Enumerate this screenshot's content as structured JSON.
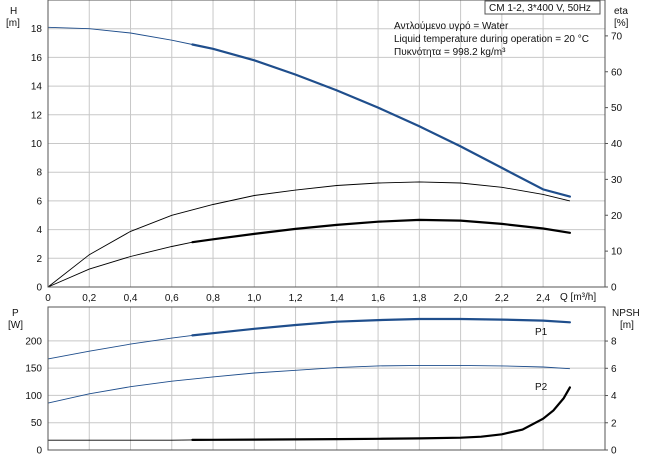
{
  "chart_data": [
    {
      "type": "line",
      "panel": "head-efficiency",
      "title": "CM 1-2, 3*400 V, 50Hz",
      "annotations": [
        "Αντλούμενο υγρό = Water",
        "Liquid temperature during operation = 20 °C",
        "Πυκνότητα = 998.2 kg/m³"
      ],
      "xlabel": "Q [m³/h]",
      "ylabel_left": {
        "name": "H",
        "unit": "[m]"
      },
      "ylabel_right": {
        "name": "eta",
        "unit": "[%]"
      },
      "xlim": [
        0,
        2.7
      ],
      "ylim_left": [
        0,
        20
      ],
      "ylim_right": [
        0,
        80
      ],
      "x_ticks": [
        "0",
        "0,2",
        "0,4",
        "0,6",
        "0,8",
        "1,0",
        "1,2",
        "1,4",
        "1,6",
        "1,8",
        "2,0",
        "2,2",
        "2,4"
      ],
      "y_ticks_left": [
        "0",
        "2",
        "4",
        "6",
        "8",
        "10",
        "12",
        "14",
        "16",
        "18"
      ],
      "y_ticks_right": [
        "0",
        "10",
        "20",
        "30",
        "40",
        "50",
        "60",
        "70"
      ],
      "grid": true,
      "series": [
        {
          "axis": "left",
          "color": "#1f4e8c",
          "highlight_from": 0.7,
          "x": [
            0,
            0.2,
            0.4,
            0.6,
            0.7,
            0.8,
            1.0,
            1.2,
            1.4,
            1.6,
            1.8,
            2.0,
            2.2,
            2.4,
            2.53
          ],
          "y": [
            18.1,
            18.0,
            17.7,
            17.2,
            16.9,
            16.6,
            15.8,
            14.8,
            13.7,
            12.5,
            11.2,
            9.8,
            8.3,
            6.8,
            6.3
          ]
        },
        {
          "axis": "right",
          "color": "#000000",
          "highlight_from": 2.6,
          "x": [
            0,
            0.2,
            0.4,
            0.6,
            0.8,
            1.0,
            1.2,
            1.4,
            1.6,
            1.8,
            2.0,
            2.2,
            2.4,
            2.53
          ],
          "y": [
            0,
            9,
            15.5,
            20,
            23,
            25.5,
            27,
            28.3,
            29,
            29.3,
            29,
            27.8,
            25.8,
            24
          ]
        },
        {
          "axis": "right",
          "color": "#000000",
          "highlight_from": 0.7,
          "x": [
            0,
            0.2,
            0.4,
            0.6,
            0.7,
            0.8,
            1.0,
            1.2,
            1.4,
            1.6,
            1.8,
            2.0,
            2.2,
            2.4,
            2.53
          ],
          "y": [
            0,
            5,
            8.5,
            11.3,
            12.5,
            13.3,
            14.8,
            16.2,
            17.3,
            18.2,
            18.7,
            18.5,
            17.6,
            16.3,
            15.1
          ]
        }
      ]
    },
    {
      "type": "line",
      "panel": "power-npsh",
      "xlabel": "",
      "ylabel_left": {
        "name": "P",
        "unit": "[W]"
      },
      "ylabel_right": {
        "name": "NPSH",
        "unit": "[m]"
      },
      "xlim": [
        0,
        2.7
      ],
      "ylim_left": [
        0,
        262
      ],
      "ylim_right": [
        0,
        10.5
      ],
      "y_ticks_left": [
        "0",
        "50",
        "100",
        "150",
        "200"
      ],
      "y_ticks_right": [
        "0",
        "2",
        "4",
        "6",
        "8"
      ],
      "grid": true,
      "series": [
        {
          "name": "P1",
          "axis": "left",
          "color": "#1f4e8c",
          "highlight_from": 0.7,
          "x": [
            0,
            0.2,
            0.4,
            0.6,
            0.7,
            0.8,
            1.0,
            1.2,
            1.4,
            1.6,
            1.8,
            2.0,
            2.2,
            2.4,
            2.53
          ],
          "y": [
            167,
            181,
            194,
            205,
            210,
            214,
            222,
            229,
            235,
            238,
            240,
            240,
            239,
            237,
            234
          ]
        },
        {
          "name": "P2",
          "axis": "left",
          "color": "#1f4e8c",
          "highlight_from": 2.6,
          "x": [
            0,
            0.2,
            0.4,
            0.6,
            0.8,
            1.0,
            1.2,
            1.4,
            1.6,
            1.8,
            2.0,
            2.2,
            2.4,
            2.53
          ],
          "y": [
            86,
            103,
            116,
            126,
            134,
            141,
            146,
            151,
            154,
            155,
            155,
            154,
            152,
            149
          ]
        },
        {
          "axis": "right",
          "color": "#000000",
          "highlight_from": 0.7,
          "x": [
            0,
            0.2,
            0.4,
            0.6,
            0.7,
            0.8,
            1.0,
            1.2,
            1.4,
            1.6,
            1.8,
            2.0,
            2.1,
            2.2,
            2.3,
            2.4,
            2.45,
            2.5,
            2.53
          ],
          "y": [
            0.72,
            0.72,
            0.72,
            0.72,
            0.74,
            0.75,
            0.76,
            0.78,
            0.8,
            0.82,
            0.85,
            0.9,
            0.98,
            1.15,
            1.5,
            2.3,
            2.9,
            3.8,
            4.6
          ]
        }
      ]
    }
  ]
}
